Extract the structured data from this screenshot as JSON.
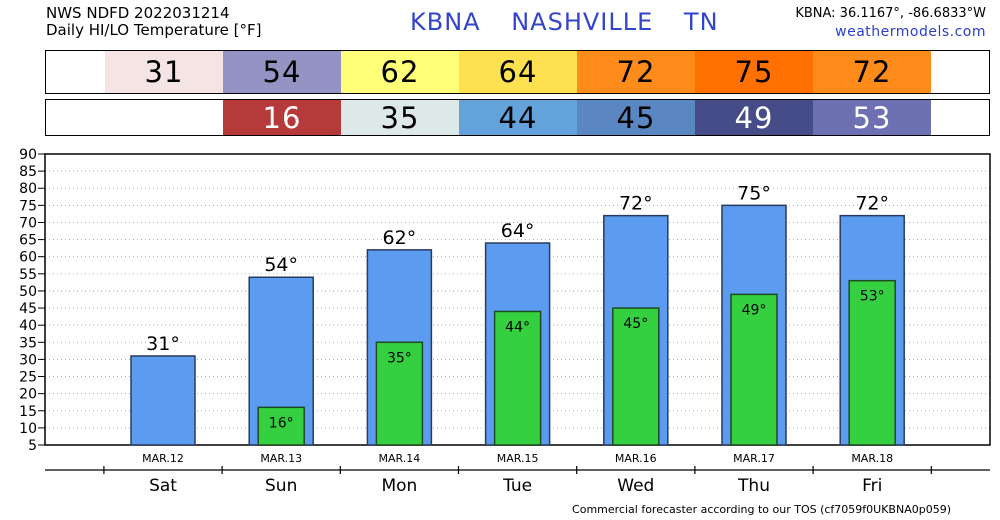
{
  "header": {
    "line1": "NWS NDFD 2022031214",
    "line2": "Daily HI/LO Temperature [°F]",
    "station_id": "KBNA",
    "station_city": "NASHVILLE",
    "station_state": "TN",
    "coords": "KBNA: 36.1167°, -86.6833°W",
    "site": "weathermodels.com"
  },
  "hi_strip": [
    {
      "value": "31",
      "color": "#f5e4e4",
      "text_color": "#000000"
    },
    {
      "value": "54",
      "color": "#9494c4",
      "text_color": "#000000"
    },
    {
      "value": "62",
      "color": "#ffff78",
      "text_color": "#000000"
    },
    {
      "value": "64",
      "color": "#ffe050",
      "text_color": "#000000"
    },
    {
      "value": "72",
      "color": "#ff8c1a",
      "text_color": "#000000"
    },
    {
      "value": "75",
      "color": "#ff7000",
      "text_color": "#000000"
    },
    {
      "value": "72",
      "color": "#ff8c1a",
      "text_color": "#000000"
    }
  ],
  "lo_strip": [
    {
      "value": "",
      "color": "#ffffff",
      "text_color": "#000000"
    },
    {
      "value": "16",
      "color": "#b63a3a",
      "text_color": "#ffffff"
    },
    {
      "value": "35",
      "color": "#dde8e8",
      "text_color": "#000000"
    },
    {
      "value": "44",
      "color": "#64a2dc",
      "text_color": "#000000"
    },
    {
      "value": "45",
      "color": "#5a86c2",
      "text_color": "#000000"
    },
    {
      "value": "49",
      "color": "#464c88",
      "text_color": "#ffffff"
    },
    {
      "value": "53",
      "color": "#6e70b4",
      "text_color": "#ffffff"
    }
  ],
  "chart_data": {
    "type": "bar",
    "categories": [
      "Sat",
      "Sun",
      "Mon",
      "Tue",
      "Wed",
      "Thu",
      "Fri"
    ],
    "dates": [
      "MAR.12",
      "MAR.13",
      "MAR.14",
      "MAR.15",
      "MAR.16",
      "MAR.17",
      "MAR.18"
    ],
    "series": [
      {
        "values": [
          31,
          54,
          62,
          64,
          72,
          75,
          72
        ],
        "color": "#5b9cf0"
      },
      {
        "values": [
          null,
          16,
          35,
          44,
          45,
          49,
          53
        ],
        "color": "#35d040"
      }
    ],
    "hi_labels": [
      "31°",
      "54°",
      "62°",
      "64°",
      "72°",
      "75°",
      "72°"
    ],
    "lo_labels": [
      "",
      "16°",
      "35°",
      "44°",
      "45°",
      "49°",
      "53°"
    ],
    "yticks": [
      5,
      10,
      15,
      20,
      25,
      30,
      35,
      40,
      45,
      50,
      55,
      60,
      65,
      70,
      75,
      80,
      85,
      90
    ],
    "ylim": [
      5,
      90
    ],
    "grid": true,
    "xlabel": "",
    "ylabel": ""
  },
  "footer": {
    "tos": "Commercial forecaster according to our TOS (cf7059f0UKBNA0p059)"
  }
}
